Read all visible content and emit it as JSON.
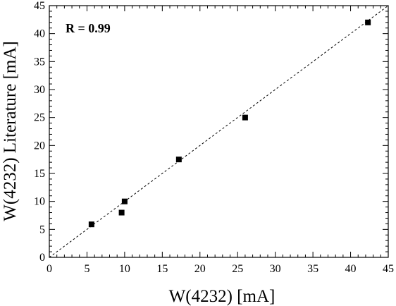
{
  "chart_data": {
    "type": "scatter",
    "xlabel": "W(4232) [mA]",
    "ylabel": "W(4232) Literature [mA]",
    "xlim": [
      0,
      45
    ],
    "ylim": [
      0,
      45
    ],
    "x_ticks": [
      "0",
      "5",
      "10",
      "15",
      "20",
      "25",
      "30",
      "35",
      "40",
      "45"
    ],
    "y_ticks": [
      "0",
      "5",
      "10",
      "15",
      "20",
      "25",
      "30",
      "35",
      "40",
      "45"
    ],
    "annotation": "R = 0.99",
    "reference_line": {
      "style": "dashed",
      "from": [
        0,
        0
      ],
      "to": [
        45,
        45
      ]
    },
    "marker": {
      "shape": "square",
      "color": "#000000"
    },
    "series": [
      {
        "points": [
          {
            "x": 5.6,
            "y": 5.9
          },
          {
            "x": 9.6,
            "y": 8.0
          },
          {
            "x": 10.0,
            "y": 10.0
          },
          {
            "x": 17.2,
            "y": 17.5
          },
          {
            "x": 26.0,
            "y": 25.0
          },
          {
            "x": 42.3,
            "y": 42.0
          }
        ]
      }
    ]
  }
}
